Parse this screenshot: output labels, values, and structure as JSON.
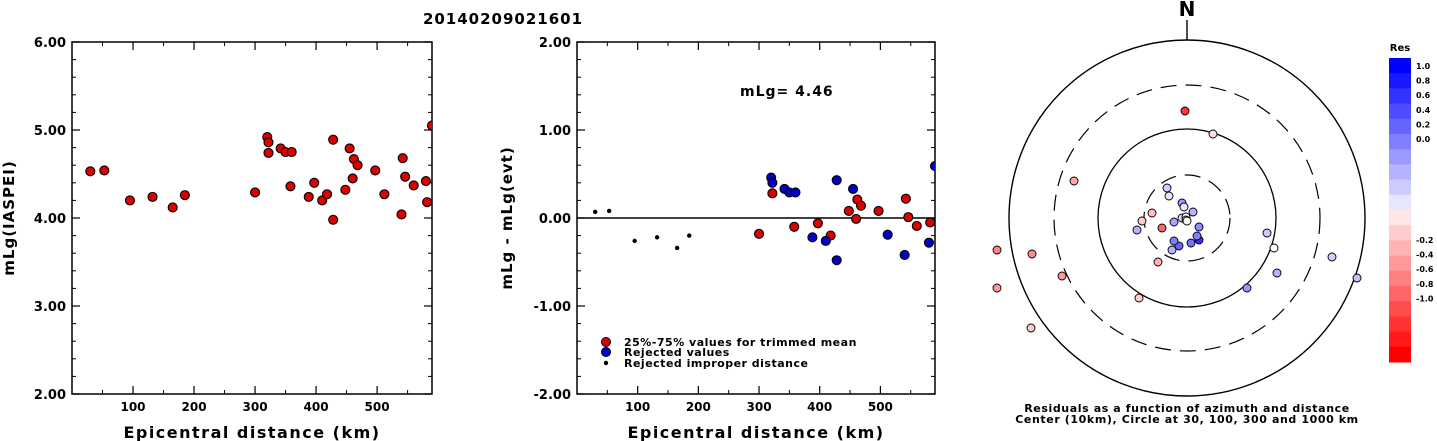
{
  "figure": {
    "title": "20140209021601",
    "xlabel": "Epicentral distance (km)"
  },
  "chart_data": [
    {
      "type": "scatter",
      "ylabel": "mLg(IASPEI)",
      "xlim": [
        0,
        590
      ],
      "ylim": [
        2.0,
        6.0
      ],
      "x_ticks": [
        "100",
        "200",
        "300",
        "400",
        "500"
      ],
      "y_ticks": [
        "2.00",
        "3.00",
        "4.00",
        "5.00",
        "6.00"
      ],
      "series": [
        {
          "marker_color": "#dd0000",
          "points": [
            [
              30,
              4.53
            ],
            [
              53,
              4.54
            ],
            [
              95,
              4.2
            ],
            [
              132,
              4.24
            ],
            [
              165,
              4.12
            ],
            [
              185,
              4.26
            ],
            [
              300,
              4.29
            ],
            [
              320,
              4.92
            ],
            [
              322,
              4.86
            ],
            [
              322,
              4.74
            ],
            [
              342,
              4.79
            ],
            [
              350,
              4.75
            ],
            [
              360,
              4.75
            ],
            [
              358,
              4.36
            ],
            [
              388,
              4.24
            ],
            [
              397,
              4.4
            ],
            [
              410,
              4.2
            ],
            [
              418,
              4.27
            ],
            [
              428,
              4.89
            ],
            [
              428,
              3.98
            ],
            [
              448,
              4.32
            ],
            [
              455,
              4.79
            ],
            [
              460,
              4.45
            ],
            [
              462,
              4.67
            ],
            [
              468,
              4.6
            ],
            [
              497,
              4.54
            ],
            [
              512,
              4.27
            ],
            [
              540,
              4.04
            ],
            [
              542,
              4.68
            ],
            [
              546,
              4.47
            ],
            [
              560,
              4.37
            ],
            [
              580,
              4.42
            ],
            [
              582,
              4.18
            ],
            [
              590,
              5.05
            ]
          ]
        }
      ]
    },
    {
      "type": "scatter",
      "ylabel": "mLg - mLg(evt)",
      "xlim": [
        0,
        590
      ],
      "ylim": [
        -2.0,
        2.0
      ],
      "x_ticks": [
        "100",
        "200",
        "300",
        "400",
        "500"
      ],
      "y_ticks": [
        "-2.00",
        "-1.00",
        "0.00",
        "1.00",
        "2.00"
      ],
      "annotation": "mLg= 4.46",
      "reference_line_y": 0.0,
      "legend_position": "bottom-left",
      "series": [
        {
          "name": "25%-75% values for trimmed mean",
          "marker_color": "#dd0000",
          "points": [
            [
              300,
              -0.18
            ],
            [
              322,
              0.28
            ],
            [
              358,
              -0.1
            ],
            [
              397,
              -0.06
            ],
            [
              418,
              -0.2
            ],
            [
              448,
              0.08
            ],
            [
              460,
              -0.01
            ],
            [
              462,
              0.21
            ],
            [
              468,
              0.14
            ],
            [
              497,
              0.08
            ],
            [
              542,
              0.22
            ],
            [
              546,
              0.01
            ],
            [
              560,
              -0.09
            ],
            [
              582,
              -0.05
            ]
          ]
        },
        {
          "name": "Rejected values",
          "marker_color": "#0000cc",
          "points": [
            [
              320,
              0.46
            ],
            [
              322,
              0.4
            ],
            [
              342,
              0.33
            ],
            [
              350,
              0.29
            ],
            [
              360,
              0.29
            ],
            [
              388,
              -0.22
            ],
            [
              410,
              -0.26
            ],
            [
              428,
              0.43
            ],
            [
              428,
              -0.48
            ],
            [
              455,
              0.33
            ],
            [
              512,
              -0.19
            ],
            [
              540,
              -0.42
            ],
            [
              580,
              -0.28
            ],
            [
              590,
              0.59
            ]
          ]
        },
        {
          "name": "Rejected improper distance",
          "marker_color": "#000000",
          "points": [
            [
              30,
              0.07
            ],
            [
              53,
              0.08
            ],
            [
              95,
              -0.26
            ],
            [
              132,
              -0.22
            ],
            [
              165,
              -0.34
            ],
            [
              185,
              -0.2
            ]
          ]
        }
      ]
    },
    {
      "type": "polar-scatter",
      "north_label": "N",
      "caption_line1": "Residuals as a function of azimuth and distance",
      "caption_line2": "Center (10km), Circle at 30, 100, 300 and 1000 km",
      "rings_km": [
        30,
        100,
        300,
        1000
      ],
      "points": [
        [
          -2,
          107,
          -0.8
        ],
        [
          26,
          84,
          -0.12
        ],
        [
          87,
          -30,
          0.0
        ],
        [
          60,
          -70,
          0.4
        ],
        [
          90,
          -55,
          0.3
        ],
        [
          210,
          -60,
          0.35
        ],
        [
          145,
          -39,
          0.2
        ],
        [
          170,
          -60,
          0.25
        ],
        [
          -8,
          -28,
          0.6
        ],
        [
          -190,
          -70,
          -0.4
        ],
        [
          -190,
          -32,
          -0.5
        ],
        [
          -125,
          -58,
          -0.4
        ],
        [
          -155,
          -36,
          -0.45
        ],
        [
          -156,
          -110,
          -0.2
        ],
        [
          -113,
          37,
          -0.35
        ],
        [
          -35,
          5,
          -0.25
        ],
        [
          -45,
          -3,
          -0.2
        ],
        [
          -13,
          -4,
          0.35
        ],
        [
          12,
          -9,
          0.45
        ],
        [
          -29,
          -44,
          -0.3
        ],
        [
          -25,
          -10,
          -0.6
        ],
        [
          -20,
          30,
          0.2
        ],
        [
          -50,
          -12,
          0.3
        ],
        [
          -15,
          -32,
          0.3
        ],
        [
          80,
          -15,
          0.2
        ],
        [
          -13,
          -23,
          0.5
        ],
        [
          4,
          -25,
          0.55
        ],
        [
          12,
          -22,
          0.8
        ],
        [
          -5,
          0,
          0.15
        ],
        [
          10,
          -18,
          0.5
        ],
        [
          -5,
          15,
          0.4
        ],
        [
          -3,
          11,
          0.1
        ],
        [
          6,
          6,
          0.3
        ],
        [
          -18,
          22,
          0.1
        ],
        [
          -48,
          -80,
          -0.2
        ],
        [
          -1,
          1,
          0.0
        ],
        [
          -1,
          -2,
          0.0
        ],
        [
          0,
          -3,
          0.0
        ]
      ]
    },
    {
      "type": "colorbar",
      "title": "Res",
      "labels": [
        "1.0",
        "0.8",
        "0.6",
        "0.4",
        "0.2",
        "0.0",
        "-0.2",
        "-0.4",
        "-0.6",
        "-0.8",
        "-1.0"
      ],
      "range": [
        -1.0,
        1.0
      ],
      "positive_color": "#0000ff",
      "negative_color": "#ff0000",
      "zero_color": "#ffffff"
    }
  ]
}
